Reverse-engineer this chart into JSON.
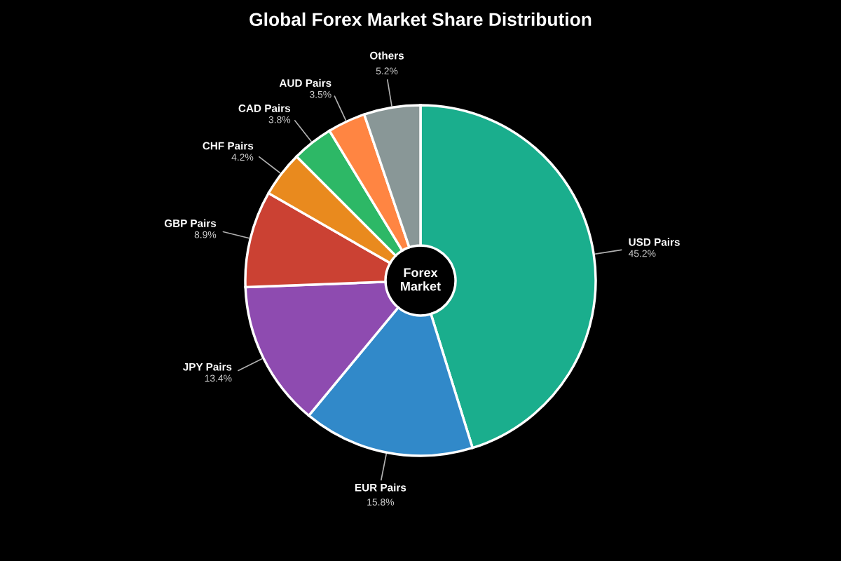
{
  "chart_data": {
    "type": "donut",
    "title": "Global Forex Market Share Distribution",
    "categories": [
      "USD Pairs",
      "EUR Pairs",
      "JPY Pairs",
      "GBP Pairs",
      "CHF Pairs",
      "CAD Pairs",
      "AUD Pairs",
      "Others"
    ],
    "values": [
      45.2,
      15.8,
      13.4,
      8.9,
      4.2,
      3.8,
      3.5,
      5.2
    ],
    "value_labels": [
      "45.2%",
      "15.8%",
      "13.4%",
      "8.9%",
      "4.2%",
      "3.8%",
      "3.5%",
      "5.2%"
    ],
    "colors": [
      "#1aae8d",
      "#3189c9",
      "#8e4bb0",
      "#cb4133",
      "#e98a1e",
      "#2db866",
      "#ff8542",
      "#899797"
    ],
    "annotations": [
      "Forex\nMarket"
    ],
    "legend": false
  }
}
